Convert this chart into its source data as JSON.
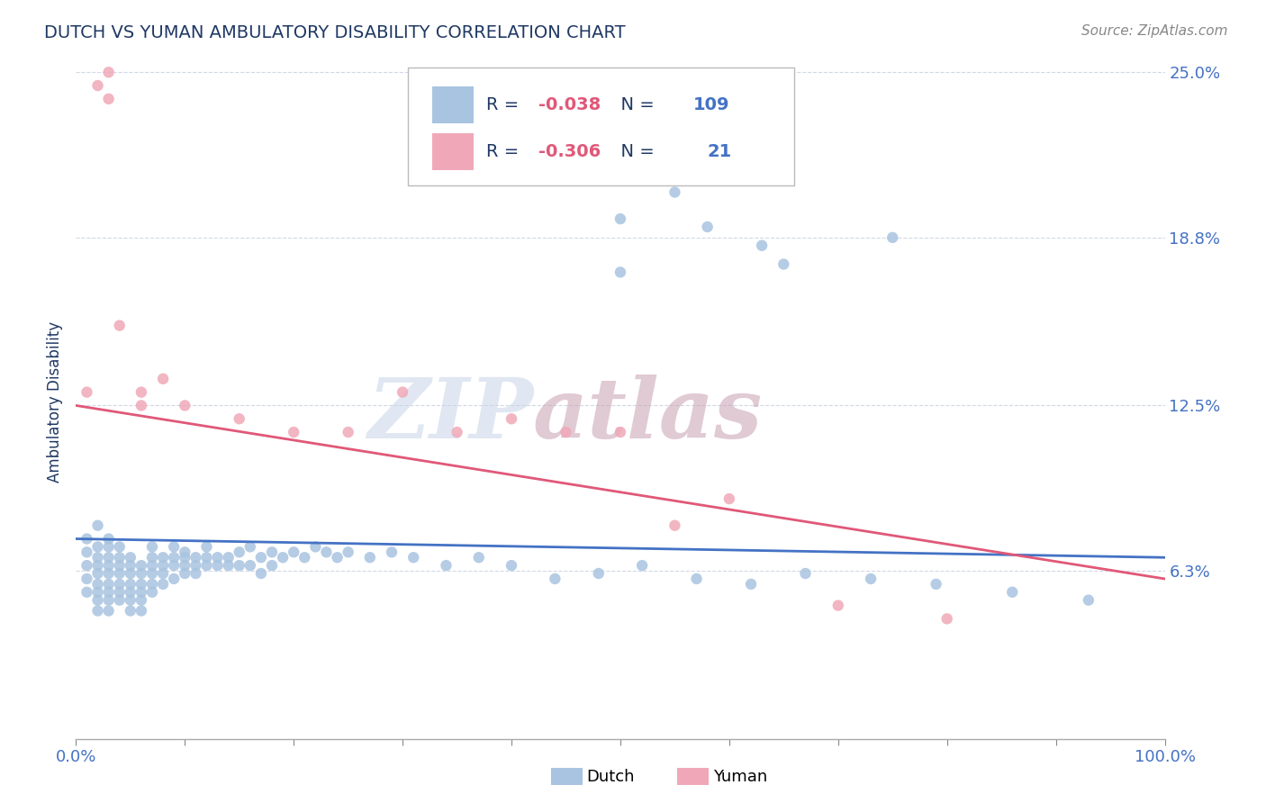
{
  "title": "DUTCH VS YUMAN AMBULATORY DISABILITY CORRELATION CHART",
  "source_text": "Source: ZipAtlas.com",
  "ylabel": "Ambulatory Disability",
  "watermark_zip": "ZIP",
  "watermark_atlas": "atlas",
  "xmin": 0.0,
  "xmax": 1.0,
  "ymin": 0.0,
  "ymax": 0.25,
  "ytick_vals": [
    0.063,
    0.125,
    0.188,
    0.25
  ],
  "ytick_labels": [
    "6.3%",
    "12.5%",
    "18.8%",
    "25.0%"
  ],
  "xtick_vals": [
    0.0,
    0.1,
    0.2,
    0.3,
    0.4,
    0.5,
    0.6,
    0.7,
    0.8,
    0.9,
    1.0
  ],
  "xtick_labels": [
    "0.0%",
    "",
    "",
    "",
    "",
    "",
    "",
    "",
    "",
    "",
    "100.0%"
  ],
  "dutch_R": -0.038,
  "dutch_N": 109,
  "yuman_R": -0.306,
  "yuman_N": 21,
  "dutch_color": "#a8c4e0",
  "yuman_color": "#f0a8b8",
  "dutch_line_color": "#4472c4",
  "yuman_line_color": "#e05878",
  "title_color": "#1f3864",
  "axis_label_color": "#1f3864",
  "tick_color": "#4472c4",
  "source_color": "#888888",
  "background_color": "#ffffff",
  "grid_color": "#d0d8e8",
  "dutch_trend_y0": 0.075,
  "dutch_trend_y1": 0.068,
  "yuman_trend_y0": 0.125,
  "yuman_trend_y1": 0.06,
  "dutch_x": [
    0.01,
    0.01,
    0.01,
    0.01,
    0.01,
    0.02,
    0.02,
    0.02,
    0.02,
    0.02,
    0.02,
    0.02,
    0.02,
    0.02,
    0.03,
    0.03,
    0.03,
    0.03,
    0.03,
    0.03,
    0.03,
    0.03,
    0.03,
    0.04,
    0.04,
    0.04,
    0.04,
    0.04,
    0.04,
    0.04,
    0.05,
    0.05,
    0.05,
    0.05,
    0.05,
    0.05,
    0.05,
    0.06,
    0.06,
    0.06,
    0.06,
    0.06,
    0.06,
    0.07,
    0.07,
    0.07,
    0.07,
    0.07,
    0.07,
    0.08,
    0.08,
    0.08,
    0.08,
    0.09,
    0.09,
    0.09,
    0.09,
    0.1,
    0.1,
    0.1,
    0.1,
    0.11,
    0.11,
    0.11,
    0.12,
    0.12,
    0.12,
    0.13,
    0.13,
    0.14,
    0.14,
    0.15,
    0.15,
    0.16,
    0.16,
    0.17,
    0.17,
    0.18,
    0.18,
    0.19,
    0.2,
    0.21,
    0.22,
    0.23,
    0.24,
    0.25,
    0.27,
    0.29,
    0.31,
    0.34,
    0.37,
    0.4,
    0.44,
    0.48,
    0.52,
    0.57,
    0.62,
    0.67,
    0.73,
    0.79,
    0.86,
    0.93,
    0.5,
    0.5,
    0.55,
    0.58,
    0.63,
    0.65,
    0.75
  ],
  "dutch_y": [
    0.075,
    0.07,
    0.065,
    0.06,
    0.055,
    0.072,
    0.068,
    0.065,
    0.062,
    0.058,
    0.055,
    0.052,
    0.048,
    0.08,
    0.075,
    0.072,
    0.068,
    0.065,
    0.062,
    0.058,
    0.055,
    0.052,
    0.048,
    0.072,
    0.068,
    0.065,
    0.062,
    0.058,
    0.055,
    0.052,
    0.068,
    0.065,
    0.062,
    0.058,
    0.055,
    0.052,
    0.048,
    0.065,
    0.062,
    0.058,
    0.055,
    0.052,
    0.048,
    0.072,
    0.068,
    0.065,
    0.062,
    0.058,
    0.055,
    0.068,
    0.065,
    0.062,
    0.058,
    0.072,
    0.068,
    0.065,
    0.06,
    0.07,
    0.068,
    0.065,
    0.062,
    0.068,
    0.065,
    0.062,
    0.072,
    0.068,
    0.065,
    0.068,
    0.065,
    0.068,
    0.065,
    0.07,
    0.065,
    0.072,
    0.065,
    0.068,
    0.062,
    0.07,
    0.065,
    0.068,
    0.07,
    0.068,
    0.072,
    0.07,
    0.068,
    0.07,
    0.068,
    0.07,
    0.068,
    0.065,
    0.068,
    0.065,
    0.06,
    0.062,
    0.065,
    0.06,
    0.058,
    0.062,
    0.06,
    0.058,
    0.055,
    0.052,
    0.195,
    0.175,
    0.205,
    0.192,
    0.185,
    0.178,
    0.188
  ],
  "yuman_x": [
    0.01,
    0.02,
    0.03,
    0.03,
    0.04,
    0.06,
    0.06,
    0.08,
    0.1,
    0.15,
    0.2,
    0.25,
    0.3,
    0.35,
    0.4,
    0.45,
    0.5,
    0.55,
    0.6,
    0.7,
    0.8
  ],
  "yuman_y": [
    0.13,
    0.245,
    0.25,
    0.24,
    0.155,
    0.13,
    0.125,
    0.135,
    0.125,
    0.12,
    0.115,
    0.115,
    0.13,
    0.115,
    0.12,
    0.115,
    0.115,
    0.08,
    0.09,
    0.05,
    0.045
  ]
}
